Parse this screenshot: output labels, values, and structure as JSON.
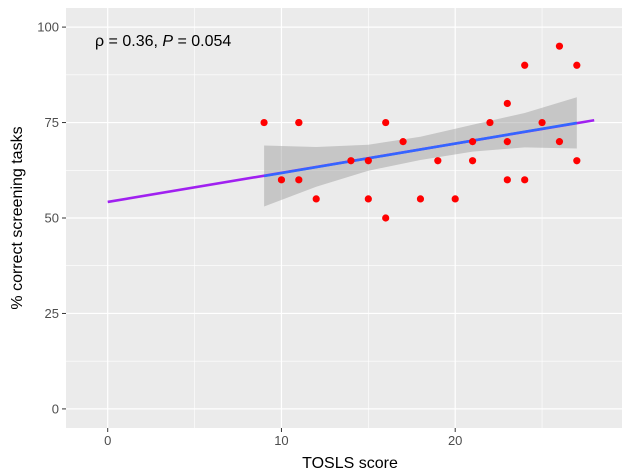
{
  "chart_data": {
    "type": "scatter",
    "title": "",
    "xlabel": "TOSLS score",
    "ylabel": "% correct screening tasks",
    "xlim": [
      -2.4,
      29.6
    ],
    "ylim": [
      -5,
      105
    ],
    "x_ticks": [
      0,
      10,
      20
    ],
    "y_ticks": [
      0,
      25,
      50,
      75,
      100
    ],
    "grid": true,
    "annotation": {
      "symbol": "ρ",
      "value_part": " = 0.36, ",
      "p_symbol": "P",
      "p_part": " = 0.054"
    },
    "points": [
      {
        "x": 9,
        "y": 75
      },
      {
        "x": 10,
        "y": 60
      },
      {
        "x": 11,
        "y": 75
      },
      {
        "x": 11,
        "y": 75
      },
      {
        "x": 11,
        "y": 60
      },
      {
        "x": 12,
        "y": 55
      },
      {
        "x": 14,
        "y": 65
      },
      {
        "x": 15,
        "y": 65
      },
      {
        "x": 15,
        "y": 55
      },
      {
        "x": 16,
        "y": 75
      },
      {
        "x": 16,
        "y": 50
      },
      {
        "x": 17,
        "y": 70
      },
      {
        "x": 18,
        "y": 55
      },
      {
        "x": 19,
        "y": 65
      },
      {
        "x": 20,
        "y": 55
      },
      {
        "x": 21,
        "y": 70
      },
      {
        "x": 21,
        "y": 65
      },
      {
        "x": 22,
        "y": 75
      },
      {
        "x": 23,
        "y": 80
      },
      {
        "x": 23,
        "y": 70
      },
      {
        "x": 23,
        "y": 60
      },
      {
        "x": 24,
        "y": 90
      },
      {
        "x": 24,
        "y": 60
      },
      {
        "x": 25,
        "y": 75
      },
      {
        "x": 26,
        "y": 95
      },
      {
        "x": 26,
        "y": 70
      },
      {
        "x": 27,
        "y": 90
      },
      {
        "x": 27,
        "y": 65
      }
    ],
    "extrapolated_line": {
      "x": [
        0,
        28
      ],
      "y": [
        54.2,
        75.6
      ]
    },
    "fit_line": {
      "x": [
        9,
        27
      ],
      "y": [
        61.0,
        74.9
      ]
    },
    "confidence_band": {
      "x": [
        9,
        12,
        15,
        18,
        21,
        24,
        27
      ],
      "lower": [
        53.0,
        58.2,
        62.4,
        65.2,
        67.4,
        68.5,
        68.2
      ],
      "upper": [
        69.0,
        68.6,
        69.2,
        71.3,
        74.4,
        77.5,
        81.6
      ]
    },
    "colors": {
      "panel_bg": "#ebebeb",
      "grid": "#ffffff",
      "points": "#ff0000",
      "fit_line": "#3366ff",
      "extrapolated_line": "#a020f0",
      "band": "#999999"
    }
  }
}
